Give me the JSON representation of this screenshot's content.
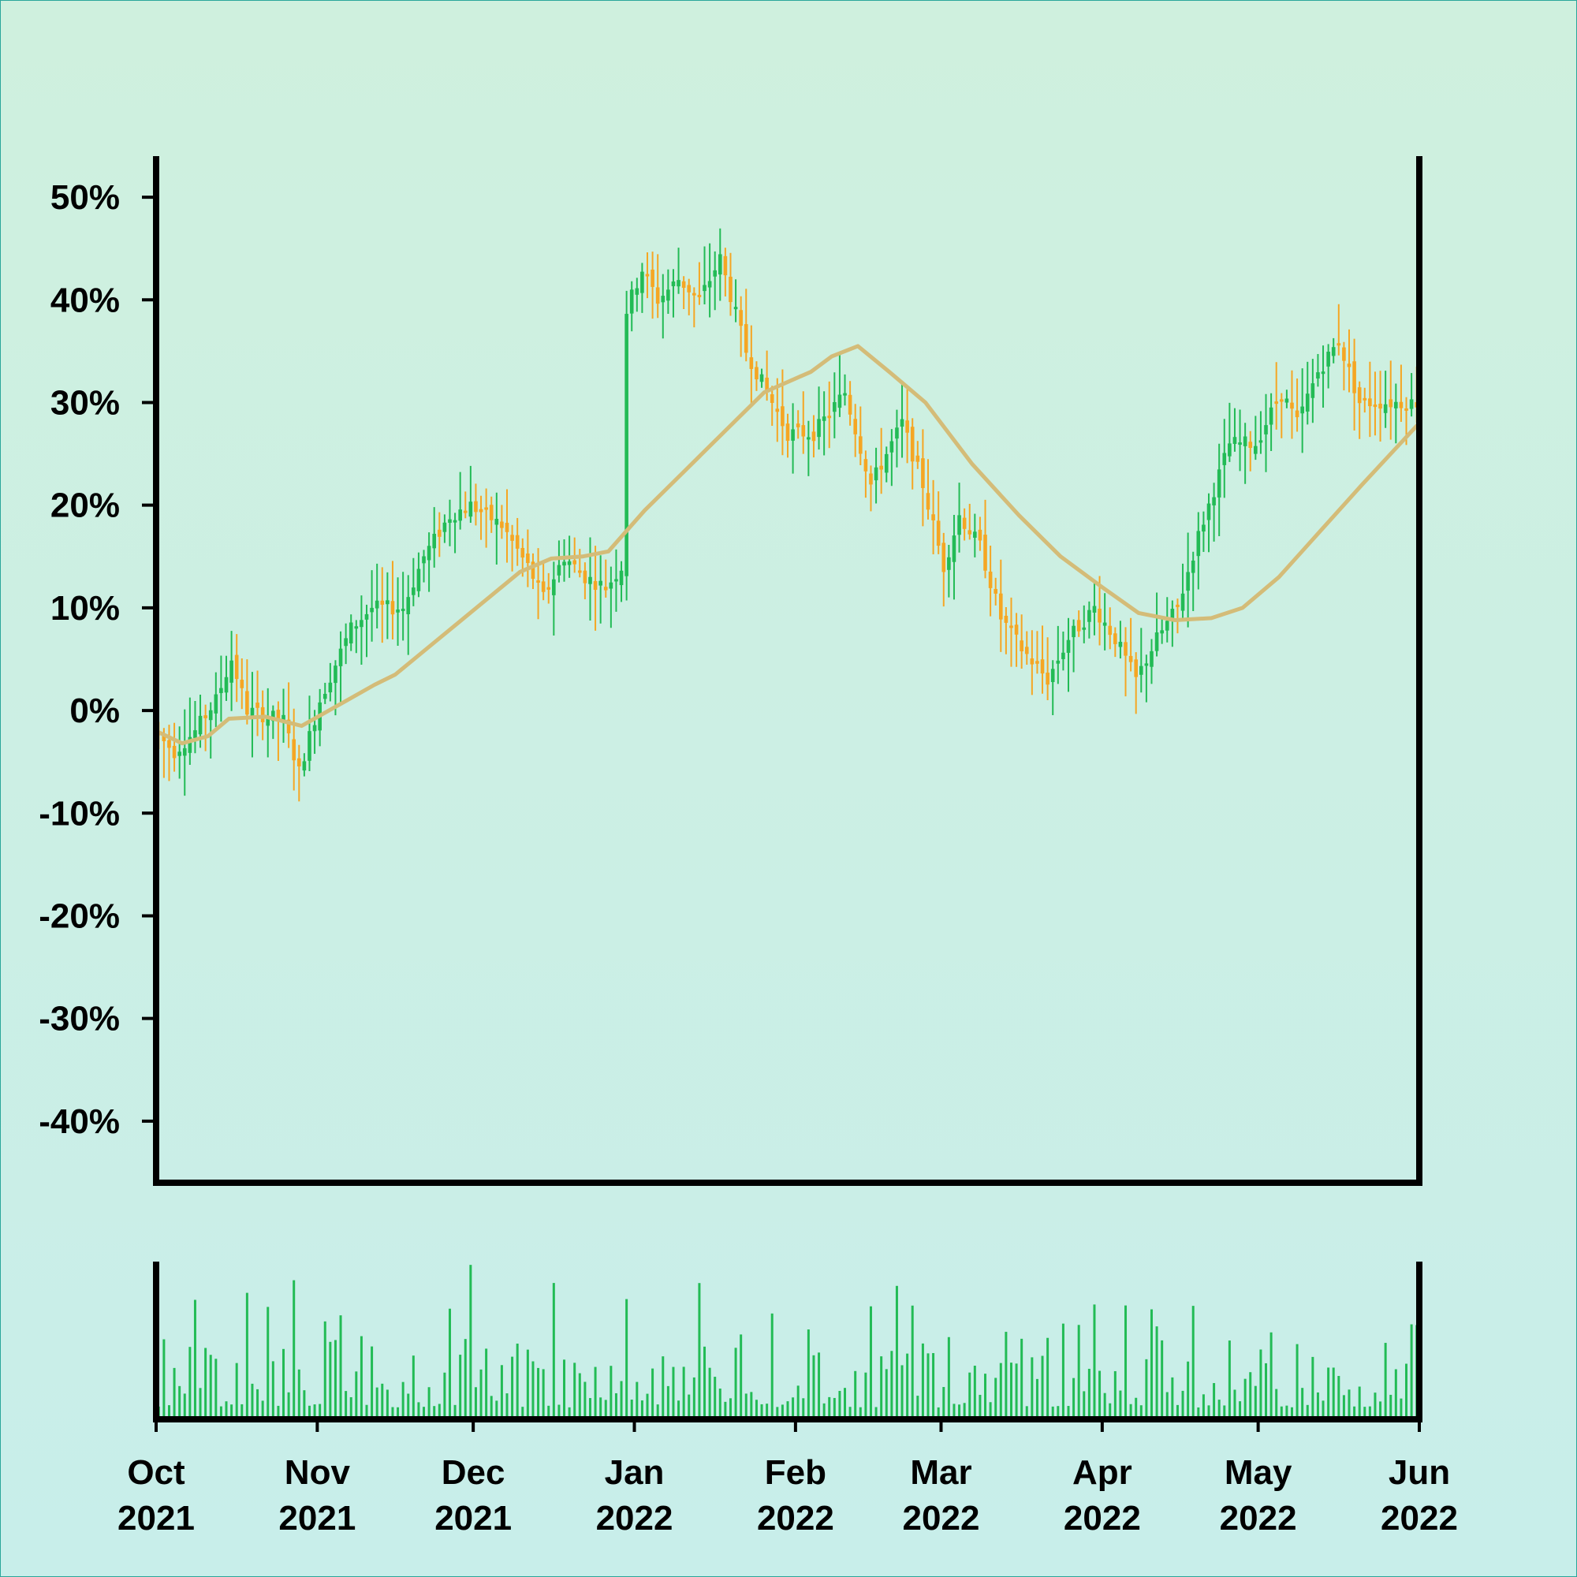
{
  "chart_data": {
    "type": "candlestick",
    "title": "",
    "xlabel": "",
    "ylabel": "",
    "colors": {
      "up": "#22bb55",
      "down": "#f5a623",
      "moving_average": "#d4bc78",
      "volume": "#22bb55",
      "frame": "#000000"
    },
    "y_axis": {
      "ticks": [
        50,
        40,
        30,
        20,
        10,
        0,
        -10,
        -20,
        -30,
        -40
      ],
      "tick_labels": [
        "50%",
        "40%",
        "30%",
        "20%",
        "10%",
        "0%",
        "-10%",
        "-20%",
        "-30%",
        "-40%"
      ],
      "range": [
        -46,
        54
      ]
    },
    "x_axis": {
      "range": [
        "2021-10-01",
        "2022-06-01"
      ],
      "ticks": [
        {
          "date": "2021-10-01",
          "month": "Oct",
          "year": "2021"
        },
        {
          "date": "2021-11-01",
          "month": "Nov",
          "year": "2021"
        },
        {
          "date": "2021-12-01",
          "month": "Dec",
          "year": "2021"
        },
        {
          "date": "2022-01-01",
          "month": "Jan",
          "year": "2022"
        },
        {
          "date": "2022-02-01",
          "month": "Feb",
          "year": "2022"
        },
        {
          "date": "2022-03-01",
          "month": "Mar",
          "year": "2022"
        },
        {
          "date": "2022-04-01",
          "month": "Apr",
          "year": "2022"
        },
        {
          "date": "2022-05-01",
          "month": "May",
          "year": "2022"
        },
        {
          "date": "2022-06-01",
          "month": "Jun",
          "year": "2022"
        }
      ]
    },
    "price_path": [
      [
        "2021-10-01",
        -2
      ],
      [
        "2021-10-05",
        -4
      ],
      [
        "2021-10-09",
        -2
      ],
      [
        "2021-10-13",
        1
      ],
      [
        "2021-10-16",
        5
      ],
      [
        "2021-10-19",
        0
      ],
      [
        "2021-10-26",
        -1
      ],
      [
        "2021-10-29",
        -6
      ],
      [
        "2021-11-02",
        1
      ],
      [
        "2021-11-08",
        8
      ],
      [
        "2021-11-12",
        10
      ],
      [
        "2021-11-18",
        10
      ],
      [
        "2021-11-22",
        15
      ],
      [
        "2021-11-27",
        19
      ],
      [
        "2021-12-01",
        20
      ],
      [
        "2021-12-07",
        18
      ],
      [
        "2021-12-12",
        14
      ],
      [
        "2021-12-15",
        11
      ],
      [
        "2021-12-19",
        15
      ],
      [
        "2021-12-23",
        13
      ],
      [
        "2021-12-27",
        12
      ],
      [
        "2021-12-30",
        14
      ],
      [
        "2021-12-31",
        39
      ],
      [
        "2022-01-03",
        43
      ],
      [
        "2022-01-06",
        40
      ],
      [
        "2022-01-10",
        42
      ],
      [
        "2022-01-14",
        40
      ],
      [
        "2022-01-18",
        44
      ],
      [
        "2022-01-23",
        35
      ],
      [
        "2022-01-27",
        31
      ],
      [
        "2022-01-31",
        27
      ],
      [
        "2022-02-05",
        27
      ],
      [
        "2022-02-11",
        31
      ],
      [
        "2022-02-16",
        22
      ],
      [
        "2022-02-22",
        28
      ],
      [
        "2022-02-26",
        22
      ],
      [
        "2022-03-02",
        14
      ],
      [
        "2022-03-05",
        19
      ],
      [
        "2022-03-09",
        16
      ],
      [
        "2022-03-13",
        9
      ],
      [
        "2022-03-17",
        6
      ],
      [
        "2022-03-22",
        3
      ],
      [
        "2022-03-26",
        7
      ],
      [
        "2022-03-31",
        10
      ],
      [
        "2022-04-04",
        7
      ],
      [
        "2022-04-08",
        3
      ],
      [
        "2022-04-12",
        7
      ],
      [
        "2022-04-16",
        10
      ],
      [
        "2022-04-20",
        17
      ],
      [
        "2022-04-26",
        26
      ],
      [
        "2022-05-01",
        26
      ],
      [
        "2022-05-06",
        31
      ],
      [
        "2022-05-09",
        28
      ],
      [
        "2022-05-13",
        33
      ],
      [
        "2022-05-17",
        36
      ],
      [
        "2022-05-21",
        30
      ],
      [
        "2022-05-25",
        30
      ],
      [
        "2022-06-01",
        30
      ]
    ],
    "moving_average": [
      [
        "2021-10-01",
        -2
      ],
      [
        "2021-10-06",
        -3.2
      ],
      [
        "2021-10-11",
        -2.5
      ],
      [
        "2021-10-15",
        -0.8
      ],
      [
        "2021-10-22",
        -0.6
      ],
      [
        "2021-10-29",
        -1.5
      ],
      [
        "2021-11-05",
        0.5
      ],
      [
        "2021-11-12",
        2.5
      ],
      [
        "2021-11-16",
        3.5
      ],
      [
        "2021-11-22",
        6
      ],
      [
        "2021-11-28",
        8.5
      ],
      [
        "2021-12-04",
        11
      ],
      [
        "2021-12-10",
        13.5
      ],
      [
        "2021-12-16",
        14.8
      ],
      [
        "2021-12-22",
        15
      ],
      [
        "2021-12-27",
        15.5
      ],
      [
        "2022-01-03",
        19.5
      ],
      [
        "2022-01-10",
        23
      ],
      [
        "2022-01-18",
        27
      ],
      [
        "2022-01-26",
        31
      ],
      [
        "2022-02-04",
        33
      ],
      [
        "2022-02-08",
        34.5
      ],
      [
        "2022-02-13",
        35.5
      ],
      [
        "2022-02-19",
        33
      ],
      [
        "2022-02-26",
        30
      ],
      [
        "2022-03-07",
        24
      ],
      [
        "2022-03-16",
        19
      ],
      [
        "2022-03-24",
        15
      ],
      [
        "2022-04-01",
        12
      ],
      [
        "2022-04-08",
        9.5
      ],
      [
        "2022-04-15",
        8.8
      ],
      [
        "2022-04-22",
        9
      ],
      [
        "2022-04-28",
        10
      ],
      [
        "2022-05-05",
        13
      ],
      [
        "2022-05-13",
        17.5
      ],
      [
        "2022-05-21",
        22
      ],
      [
        "2022-06-01",
        28
      ]
    ]
  }
}
